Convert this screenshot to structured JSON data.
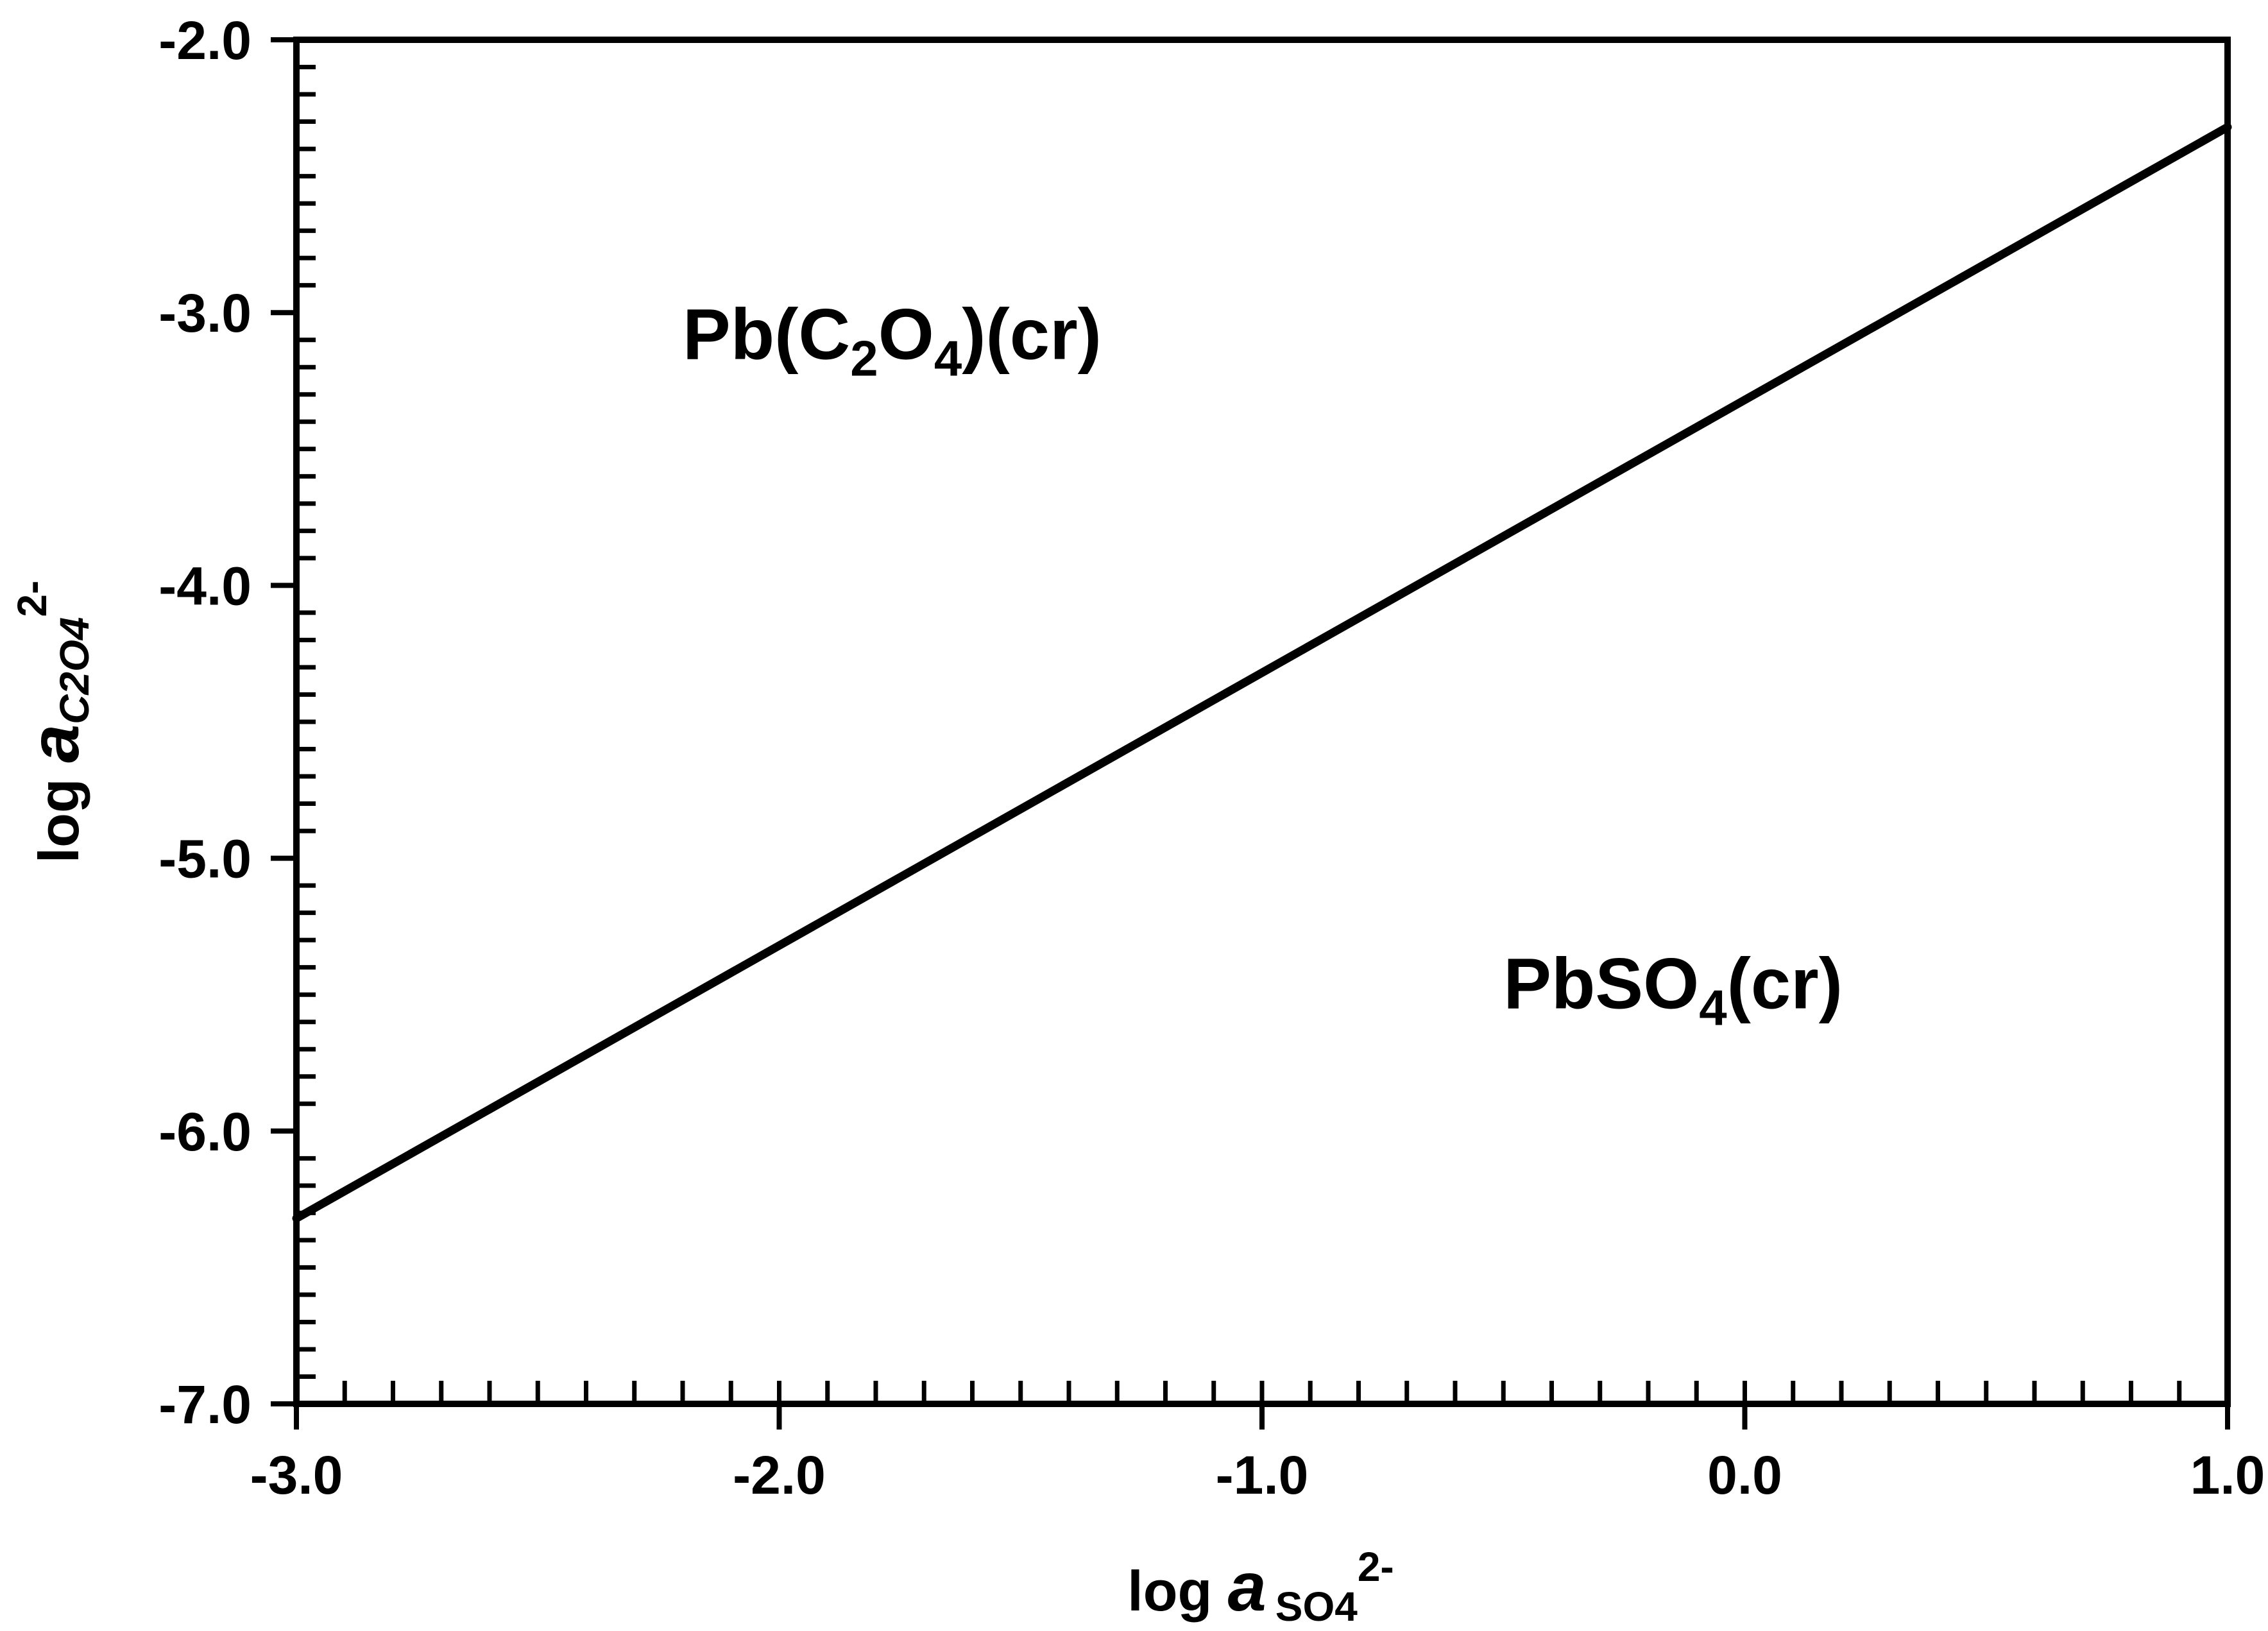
{
  "chart_data": {
    "type": "line",
    "xlabel": {
      "prefix": "log ",
      "var": "a",
      "sub": "SO4",
      "sup": "2-"
    },
    "ylabel": {
      "prefix": "log ",
      "var": "a",
      "sub": "C2O4",
      "sup": "2-"
    },
    "xlim": [
      -3.0,
      1.0
    ],
    "ylim": [
      -7.0,
      -2.0
    ],
    "x_ticks": [
      "-3.0",
      "-2.0",
      "-1.0",
      "0.0",
      "1.0"
    ],
    "y_ticks": [
      "-2.0",
      "-3.0",
      "-4.0",
      "-5.0",
      "-6.0",
      "-7.0"
    ],
    "grid": false,
    "series": [
      {
        "x": [
          -3.0,
          1.0
        ],
        "y": [
          -6.32,
          -2.32
        ]
      }
    ],
    "annotations": [
      {
        "id": "oxalate",
        "parts": [
          {
            "t": "Pb(C",
            "s": 0
          },
          {
            "t": "2",
            "s": 1
          },
          {
            "t": "O",
            "s": 0
          },
          {
            "t": "4",
            "s": 1
          },
          {
            "t": ")(cr)",
            "s": 0
          }
        ],
        "x": -2.2,
        "y": -3.17
      },
      {
        "id": "sulfate",
        "parts": [
          {
            "t": "PbSO",
            "s": 0
          },
          {
            "t": "4",
            "s": 1
          },
          {
            "t": "(cr)",
            "s": 0
          }
        ],
        "x": -0.5,
        "y": -5.55
      }
    ],
    "colors": {
      "line": "#000000",
      "frame": "#000000",
      "background": "#ffffff"
    }
  }
}
